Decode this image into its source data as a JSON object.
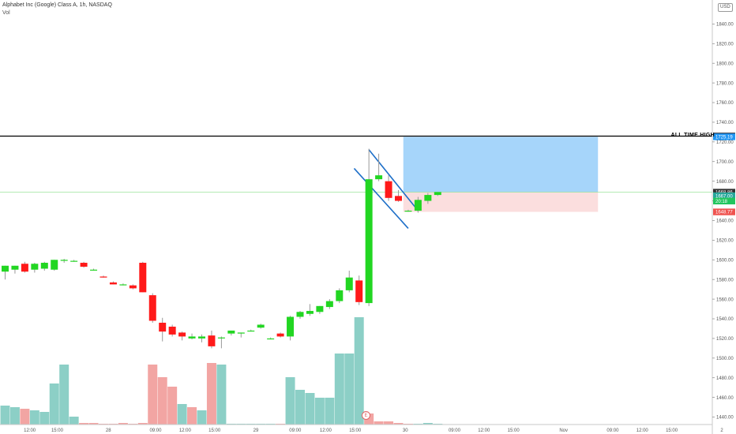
{
  "header": {
    "title": "Alphabet Inc (Google) Class A, 1h, NASDAQ",
    "volume_label": "Vol",
    "currency": "USD"
  },
  "annotations": {
    "ath_label": "ALL TIME HIGH",
    "event_marker": "E"
  },
  "price_badges": [
    {
      "label": "1725.91",
      "value": 1725.91,
      "color": "#131722"
    },
    {
      "label": "1725.19",
      "value": 1725.19,
      "color": "#2196f3"
    },
    {
      "label": "1668.86",
      "value": 1668.86,
      "color": "#333333"
    },
    {
      "label": "1667.00",
      "value": 1665.2,
      "color": "#26a69a"
    },
    {
      "label": "20:18",
      "value": 1659.8,
      "color": "#22c55e"
    },
    {
      "label": "1648.77",
      "value": 1648.77,
      "color": "#ef5350"
    }
  ],
  "colors": {
    "up_candle": "#22d622",
    "down_candle": "#ff1a1a",
    "vol_up": "#8ccfc6",
    "vol_down": "#f2a5a3",
    "target_box": "#a6d5fa",
    "stop_box": "#fbdede",
    "channel": "#1e6fc8",
    "ath_line": "#000000"
  },
  "chart_data": {
    "type": "candlestick",
    "y_axis": {
      "range": [
        1430,
        1866
      ],
      "ticks": [
        1440,
        1460,
        1480,
        1500,
        1520,
        1540,
        1560,
        1580,
        1600,
        1620,
        1640,
        1660,
        1680,
        1700,
        1720,
        1740,
        1760,
        1780,
        1800,
        1820,
        1840,
        1860
      ],
      "tick_labels": [
        "1440.00",
        "1460.00",
        "1480.00",
        "1500.00",
        "1520.00",
        "1540.00",
        "1560.00",
        "1580.00",
        "1600.00",
        "1620.00",
        "1640.00",
        "1660.00",
        "1680.00",
        "1700.00",
        "1720.00",
        "1740.00",
        "1760.00",
        "1780.00",
        "1800.00",
        "1820.00",
        "1840.00",
        "1860.00"
      ]
    },
    "x_axis": {
      "range": [
        0,
        72
      ],
      "tick_labels": [
        {
          "label": "12:00",
          "bar": 2.5
        },
        {
          "label": "15:00",
          "bar": 5.3
        },
        {
          "label": "28",
          "bar": 10.5
        },
        {
          "label": "09:00",
          "bar": 15.3
        },
        {
          "label": "12:00",
          "bar": 18.3
        },
        {
          "label": "15:00",
          "bar": 21.3
        },
        {
          "label": "29",
          "bar": 25.5
        },
        {
          "label": "09:00",
          "bar": 29.5
        },
        {
          "label": "12:00",
          "bar": 32.6
        },
        {
          "label": "15:00",
          "bar": 35.6
        },
        {
          "label": "30",
          "bar": 40.7
        },
        {
          "label": "09:00",
          "bar": 45.7
        },
        {
          "label": "12:00",
          "bar": 48.7
        },
        {
          "label": "15:00",
          "bar": 51.7
        },
        {
          "label": "Nov",
          "bar": 56.8
        },
        {
          "label": "09:00",
          "bar": 61.8
        },
        {
          "label": "12:00",
          "bar": 64.8
        },
        {
          "label": "15:00",
          "bar": 67.8
        },
        {
          "label": "2",
          "bar": 72.9
        }
      ]
    },
    "candles": [
      {
        "o": 1588,
        "h": 1592,
        "l": 1580,
        "c": 1594
      },
      {
        "o": 1590,
        "h": 1594,
        "l": 1586,
        "c": 1594
      },
      {
        "o": 1596,
        "h": 1598,
        "l": 1587,
        "c": 1588
      },
      {
        "o": 1590,
        "h": 1597,
        "l": 1587,
        "c": 1596
      },
      {
        "o": 1591,
        "h": 1598,
        "l": 1589,
        "c": 1597
      },
      {
        "o": 1590,
        "h": 1600,
        "l": 1589,
        "c": 1600
      },
      {
        "o": 1599,
        "h": 1601,
        "l": 1597,
        "c": 1600
      },
      {
        "o": 1599,
        "h": 1600,
        "l": 1598,
        "c": 1599
      },
      {
        "o": 1597,
        "h": 1598,
        "l": 1592,
        "c": 1593
      },
      {
        "o": 1590,
        "h": 1591,
        "l": 1589,
        "c": 1590
      },
      {
        "o": 1583,
        "h": 1584,
        "l": 1582,
        "c": 1582
      },
      {
        "o": 1577,
        "h": 1578,
        "l": 1575,
        "c": 1575
      },
      {
        "o": 1575,
        "h": 1576,
        "l": 1574,
        "c": 1575
      },
      {
        "o": 1574,
        "h": 1575,
        "l": 1570,
        "c": 1571
      },
      {
        "o": 1597,
        "h": 1598,
        "l": 1567,
        "c": 1567
      },
      {
        "o": 1564,
        "h": 1566,
        "l": 1536,
        "c": 1538
      },
      {
        "o": 1536,
        "h": 1541,
        "l": 1517,
        "c": 1527
      },
      {
        "o": 1532,
        "h": 1534,
        "l": 1522,
        "c": 1524
      },
      {
        "o": 1526,
        "h": 1527,
        "l": 1518,
        "c": 1522
      },
      {
        "o": 1520,
        "h": 1525,
        "l": 1519,
        "c": 1522
      },
      {
        "o": 1520,
        "h": 1524,
        "l": 1516,
        "c": 1522
      },
      {
        "o": 1523,
        "h": 1528,
        "l": 1510,
        "c": 1512
      },
      {
        "o": 1521,
        "h": 1522,
        "l": 1510,
        "c": 1521
      },
      {
        "o": 1525,
        "h": 1528,
        "l": 1523,
        "c": 1528
      },
      {
        "o": 1525,
        "h": 1526,
        "l": 1521,
        "c": 1526
      },
      {
        "o": 1528,
        "h": 1529,
        "l": 1527,
        "c": 1528
      },
      {
        "o": 1531,
        "h": 1535,
        "l": 1530,
        "c": 1534
      },
      {
        "o": 1520,
        "h": 1521,
        "l": 1519,
        "c": 1520
      },
      {
        "o": 1525,
        "h": 1526,
        "l": 1521,
        "c": 1522
      },
      {
        "o": 1522,
        "h": 1543,
        "l": 1518,
        "c": 1542
      },
      {
        "o": 1542,
        "h": 1548,
        "l": 1540,
        "c": 1547
      },
      {
        "o": 1545,
        "h": 1555,
        "l": 1543,
        "c": 1548
      },
      {
        "o": 1547,
        "h": 1553,
        "l": 1545,
        "c": 1553
      },
      {
        "o": 1552,
        "h": 1560,
        "l": 1550,
        "c": 1558
      },
      {
        "o": 1558,
        "h": 1571,
        "l": 1556,
        "c": 1569
      },
      {
        "o": 1569,
        "h": 1589,
        "l": 1567,
        "c": 1582
      },
      {
        "o": 1579,
        "h": 1584,
        "l": 1554,
        "c": 1557
      },
      {
        "o": 1556,
        "h": 1713,
        "l": 1553,
        "c": 1682
      },
      {
        "o": 1682,
        "h": 1708,
        "l": 1680,
        "c": 1686
      },
      {
        "o": 1680,
        "h": 1686,
        "l": 1660,
        "c": 1663
      },
      {
        "o": 1665,
        "h": 1671,
        "l": 1659,
        "c": 1660
      },
      {
        "o": 1650,
        "h": 1651,
        "l": 1649,
        "c": 1650
      },
      {
        "o": 1650,
        "h": 1664,
        "l": 1648,
        "c": 1661
      },
      {
        "o": 1660,
        "h": 1668,
        "l": 1657,
        "c": 1666
      },
      {
        "o": 1666,
        "h": 1669,
        "l": 1665,
        "c": 1669
      }
    ],
    "volume": [
      {
        "v": 0.12,
        "up": true
      },
      {
        "v": 0.11,
        "up": true
      },
      {
        "v": 0.1,
        "up": false
      },
      {
        "v": 0.09,
        "up": true
      },
      {
        "v": 0.08,
        "up": true
      },
      {
        "v": 0.26,
        "up": true
      },
      {
        "v": 0.38,
        "up": true
      },
      {
        "v": 0.05,
        "up": true
      },
      {
        "v": 0.01,
        "up": false
      },
      {
        "v": 0.01,
        "up": false
      },
      {
        "v": 0.005,
        "up": false
      },
      {
        "v": 0.005,
        "up": false
      },
      {
        "v": 0.01,
        "up": false
      },
      {
        "v": 0.005,
        "up": false
      },
      {
        "v": 0.01,
        "up": false
      },
      {
        "v": 0.38,
        "up": false
      },
      {
        "v": 0.3,
        "up": false
      },
      {
        "v": 0.24,
        "up": false
      },
      {
        "v": 0.13,
        "up": true
      },
      {
        "v": 0.11,
        "up": false
      },
      {
        "v": 0.09,
        "up": true
      },
      {
        "v": 0.39,
        "up": false
      },
      {
        "v": 0.38,
        "up": true
      },
      {
        "v": 0.005,
        "up": true
      },
      {
        "v": 0.005,
        "up": true
      },
      {
        "v": 0.005,
        "up": true
      },
      {
        "v": 0.005,
        "up": true
      },
      {
        "v": 0.005,
        "up": true
      },
      {
        "v": 0.005,
        "up": false
      },
      {
        "v": 0.3,
        "up": true
      },
      {
        "v": 0.22,
        "up": true
      },
      {
        "v": 0.2,
        "up": true
      },
      {
        "v": 0.17,
        "up": true
      },
      {
        "v": 0.17,
        "up": true
      },
      {
        "v": 0.45,
        "up": true
      },
      {
        "v": 0.45,
        "up": true
      },
      {
        "v": 0.68,
        "up": true
      },
      {
        "v": 0.07,
        "up": false
      },
      {
        "v": 0.02,
        "up": false
      },
      {
        "v": 0.02,
        "up": false
      },
      {
        "v": 0.01,
        "up": false
      },
      {
        "v": 0.005,
        "up": false
      },
      {
        "v": 0.005,
        "up": true
      },
      {
        "v": 0.01,
        "up": true
      },
      {
        "v": 0.005,
        "up": true
      }
    ],
    "ath_level": 1725.91,
    "current_price": 1668.86,
    "position": {
      "entry": 1668.86,
      "target": 1725.19,
      "stop": 1648.77,
      "bar_start": 40.5,
      "bar_end": 60.3
    },
    "channel": {
      "upper": [
        {
          "bar": 37.0,
          "price": 1712
        },
        {
          "bar": 42.0,
          "price": 1650
        }
      ],
      "lower": [
        {
          "bar": 35.5,
          "price": 1693
        },
        {
          "bar": 41.0,
          "price": 1632
        }
      ]
    },
    "grid": false
  }
}
